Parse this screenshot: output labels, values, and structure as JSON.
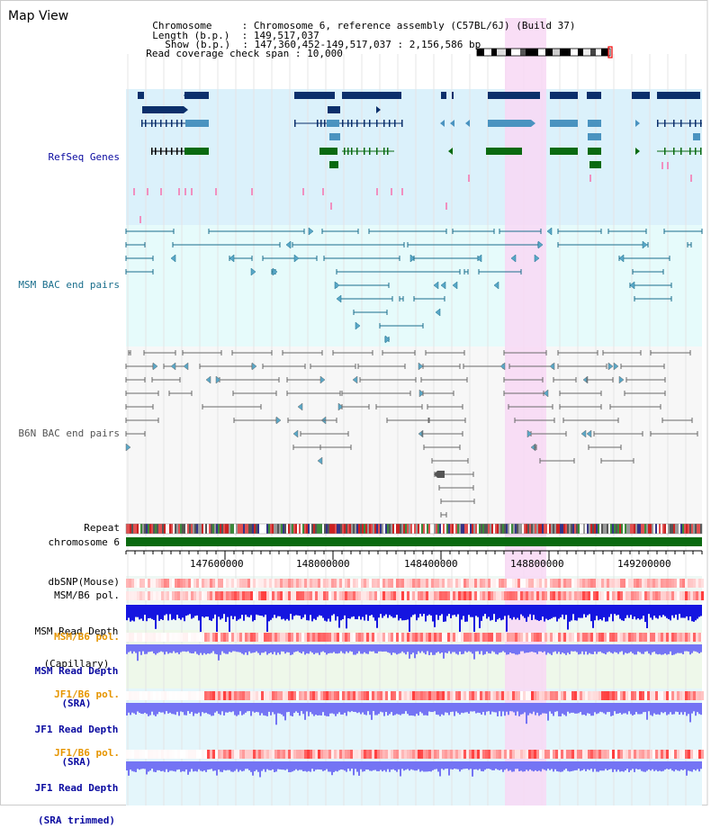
{
  "title": "Map View",
  "header": {
    "chromosome_label": "Chromosome",
    "chromosome_value": "Chromosome 6, reference assembly (C57BL/6J) (Build 37)",
    "length_label": "Length (b.p.)",
    "length_value": "149,517,037",
    "show_label": "Show (b.p.)",
    "show_value": "147,360,452-149,517,037 : 2,156,586 bp",
    "coverage_label": "Read coverage check span",
    "coverage_value": "10,000"
  },
  "tracks": {
    "refseq": "RefSeq Genes",
    "msm_bac": "MSM BAC end pairs",
    "b6n_bac": "B6N BAC end pairs",
    "repeat": "Repeat",
    "chromosome": "chromosome 6",
    "dbsnp": "dbSNP(Mouse)",
    "msm_b6_pol_1": "MSM/B6 pol.",
    "msm_depth_cap_1": "MSM Read Depth",
    "msm_depth_cap_2": "(Capillary)",
    "msm_b6_pol_2": "MSM/B6 pol.",
    "msm_depth_sra_1": "MSM Read Depth",
    "msm_depth_sra_2": "(SRA)",
    "jf1_b6_pol_1": "JF1/B6 pol.",
    "jf1_depth_sra_1": "JF1 Read Depth",
    "jf1_depth_sra_2": "(SRA)",
    "jf1_b6_pol_2": "JF1/B6 pol.",
    "jf1_depth_trim_1": "JF1 Read Depth",
    "jf1_depth_trim_2": "(SRA trimmed)"
  },
  "ruler": {
    "ticks": [
      "147600000",
      "148000000",
      "148400000",
      "148800000",
      "149200000"
    ]
  },
  "colors": {
    "refseq_bg": "#dbf1fb",
    "msm_bg": "#e6fbfb",
    "b6n_bg": "#f7f7f7",
    "highlight": "#f8d8f4",
    "gene_dark": "#0b2f6b",
    "gene_mid": "#4a93c0",
    "gene_green": "#0a6a10",
    "msm_line": "#1a6e8c",
    "b6n_line": "#6a6a6a",
    "depth_blue": "#1515e0",
    "depth_light": "#7474f4",
    "pol_red": "#e83030",
    "pol_orange": "#e69500",
    "label_blue": "#0a0aa0",
    "label_teal": "#1a6e8c"
  }
}
